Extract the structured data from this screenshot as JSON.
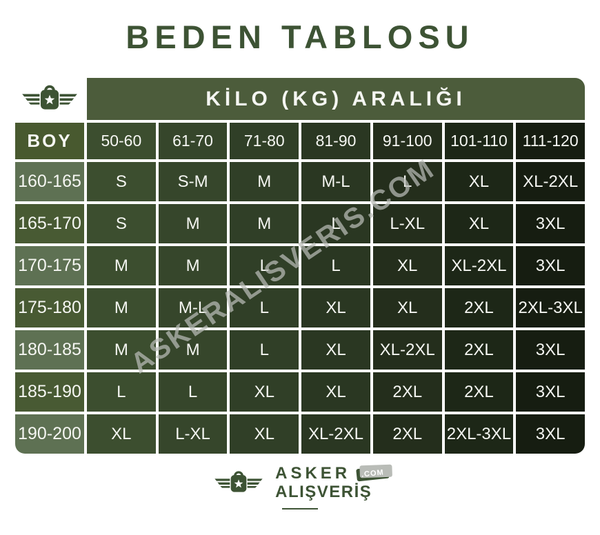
{
  "title": "BEDEN TABLOSU",
  "watermark": "ASKERALISVERIS.COM",
  "table": {
    "corner_icon": "winged-bag-logo-icon",
    "weight_header": "KİLO (KG) ARALIĞI",
    "height_col_header": "BOY",
    "weight_columns": [
      "50-60",
      "61-70",
      "71-80",
      "81-90",
      "91-100",
      "101-110",
      "111-120"
    ],
    "rows": [
      {
        "height": "160-165",
        "sizes": [
          "S",
          "S-M",
          "M",
          "M-L",
          "L",
          "XL",
          "XL-2XL"
        ]
      },
      {
        "height": "165-170",
        "sizes": [
          "S",
          "M",
          "M",
          "L",
          "L-XL",
          "XL",
          "3XL"
        ]
      },
      {
        "height": "170-175",
        "sizes": [
          "M",
          "M",
          "L",
          "L",
          "XL",
          "XL-2XL",
          "3XL"
        ]
      },
      {
        "height": "175-180",
        "sizes": [
          "M",
          "M-L",
          "L",
          "XL",
          "XL",
          "2XL",
          "2XL-3XL"
        ]
      },
      {
        "height": "180-185",
        "sizes": [
          "M",
          "M",
          "L",
          "XL",
          "XL-2XL",
          "2XL",
          "3XL"
        ]
      },
      {
        "height": "185-190",
        "sizes": [
          "L",
          "L",
          "XL",
          "XL",
          "2XL",
          "2XL",
          "3XL"
        ]
      },
      {
        "height": "190-200",
        "sizes": [
          "XL",
          "L-XL",
          "XL",
          "XL-2XL",
          "2XL",
          "2XL-3XL",
          "3XL"
        ]
      }
    ]
  },
  "footer": {
    "brand_line1": "ASKER",
    "com_badge": ".COM",
    "brand_line2": "ALIŞVERİŞ"
  },
  "colors": {
    "brand_green": "#3d5334",
    "kilo_header_bg": "#4c5c3b",
    "boy_header_bg": "#48592f",
    "height_cell_light": "#5e7153",
    "height_cell_dark": "#485a33",
    "column_shades": [
      "#3c4e2f",
      "#36462b",
      "#303f27",
      "#2a3722",
      "#242e1c",
      "#1d2717",
      "#161d11"
    ],
    "watermark_gray": "#b9bcb7"
  }
}
